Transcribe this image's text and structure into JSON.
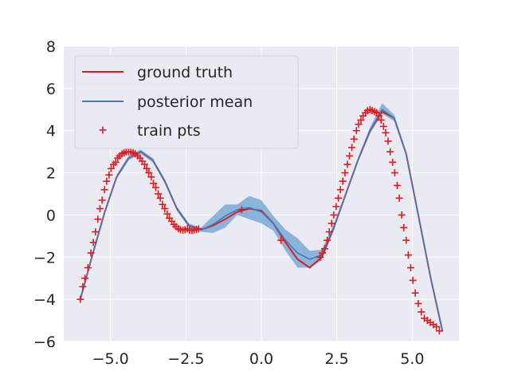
{
  "chart_data": {
    "type": "line",
    "title": "",
    "xlabel": "",
    "ylabel": "",
    "xlim": [
      -6.55,
      6.55
    ],
    "ylim": [
      -6,
      8
    ],
    "grid": true,
    "legend_position": "top-left",
    "x_ticks": [
      -5.0,
      -2.5,
      0.0,
      2.5,
      5.0
    ],
    "x_tick_labels": [
      "−5.0",
      "−2.5",
      "0.0",
      "2.5",
      "5.0"
    ],
    "y_ticks": [
      -6,
      -4,
      -2,
      0,
      2,
      4,
      6,
      8
    ],
    "y_tick_labels": [
      "−6",
      "−4",
      "−2",
      "0",
      "2",
      "4",
      "6",
      "8"
    ],
    "colors": {
      "background": "#eaeaf2",
      "grid": "#ffffff",
      "ground_truth": "#e31a1c",
      "posterior_mean": "#3a7dbf",
      "confidence_band": "#6aa1d2",
      "train_points": "#e31a1c"
    },
    "legend": [
      {
        "label": "ground truth",
        "kind": "line",
        "color": "#e31a1c"
      },
      {
        "label": "posterior mean",
        "kind": "line",
        "color": "#3a7dbf"
      },
      {
        "label": "train pts",
        "kind": "marker",
        "color": "#e31a1c"
      }
    ],
    "series": [
      {
        "name": "ground truth",
        "x": [
          -6.0,
          -5.6,
          -5.2,
          -4.8,
          -4.4,
          -4.0,
          -3.6,
          -3.2,
          -2.8,
          -2.4,
          -2.0,
          -1.6,
          -1.2,
          -0.8,
          -0.4,
          0.0,
          0.4,
          0.8,
          1.2,
          1.6,
          2.0,
          2.4,
          2.8,
          3.2,
          3.6,
          4.0,
          4.4,
          4.8,
          5.2,
          5.6,
          6.0
        ],
        "y": [
          -4.0,
          -1.9,
          0.1,
          1.8,
          2.7,
          3.0,
          2.6,
          1.6,
          0.3,
          -0.5,
          -0.7,
          -0.5,
          -0.2,
          0.15,
          0.3,
          0.2,
          -0.4,
          -1.3,
          -2.1,
          -2.5,
          -2.0,
          -0.6,
          1.0,
          2.6,
          4.0,
          4.9,
          4.6,
          2.9,
          0.0,
          -2.9,
          -5.5
        ]
      },
      {
        "name": "posterior mean",
        "x": [
          -6.0,
          -5.6,
          -5.2,
          -4.8,
          -4.4,
          -4.0,
          -3.6,
          -3.2,
          -2.8,
          -2.4,
          -2.0,
          -1.6,
          -1.2,
          -0.8,
          -0.4,
          0.0,
          0.4,
          0.8,
          1.2,
          1.6,
          2.0,
          2.4,
          2.8,
          3.2,
          3.6,
          4.0,
          4.4,
          4.8,
          5.2,
          5.6,
          6.0
        ],
        "y": [
          -4.0,
          -1.9,
          0.1,
          1.8,
          2.7,
          3.0,
          2.6,
          1.6,
          0.3,
          -0.5,
          -0.7,
          -0.45,
          -0.05,
          0.25,
          0.35,
          0.15,
          -0.4,
          -1.2,
          -1.8,
          -2.1,
          -1.9,
          -0.6,
          1.0,
          2.6,
          4.0,
          5.0,
          4.6,
          2.9,
          0.0,
          -2.9,
          -5.5
        ]
      }
    ],
    "confidence_band": {
      "x": [
        -6.0,
        -5.6,
        -5.2,
        -4.8,
        -4.4,
        -4.0,
        -3.6,
        -3.2,
        -2.8,
        -2.4,
        -2.0,
        -1.6,
        -1.2,
        -0.8,
        -0.4,
        0.0,
        0.4,
        0.8,
        1.2,
        1.6,
        2.0,
        2.4,
        2.8,
        3.2,
        3.6,
        4.0,
        4.4,
        4.8,
        5.2,
        5.6,
        6.0
      ],
      "lower": [
        -4.1,
        -2.0,
        0.0,
        1.7,
        2.6,
        2.9,
        2.5,
        1.5,
        0.2,
        -0.6,
        -0.8,
        -0.85,
        -0.6,
        0.0,
        -0.2,
        -0.4,
        -0.75,
        -1.7,
        -2.5,
        -2.5,
        -2.15,
        -0.75,
        0.9,
        2.5,
        3.85,
        4.8,
        4.45,
        2.8,
        -0.1,
        -3.0,
        -5.6
      ],
      "upper": [
        -3.9,
        -1.8,
        0.2,
        1.9,
        2.8,
        3.1,
        2.7,
        1.7,
        0.4,
        -0.4,
        -0.6,
        -0.05,
        0.5,
        0.5,
        0.9,
        0.7,
        -0.05,
        -0.7,
        -1.1,
        -1.7,
        -1.65,
        -0.45,
        1.1,
        2.7,
        4.15,
        5.3,
        4.75,
        3.0,
        0.1,
        -2.8,
        -5.4
      ]
    },
    "train_points": {
      "x": [
        -6.0,
        -5.92,
        -5.85,
        -5.75,
        -5.65,
        -5.57,
        -5.5,
        -5.42,
        -5.35,
        -5.28,
        -5.2,
        -5.13,
        -5.05,
        -4.98,
        -4.9,
        -4.83,
        -4.76,
        -4.7,
        -4.62,
        -4.55,
        -4.48,
        -4.4,
        -4.33,
        -4.25,
        -4.18,
        -4.1,
        -4.02,
        -3.95,
        -3.87,
        -3.8,
        -3.73,
        -3.65,
        -3.58,
        -3.5,
        -3.42,
        -3.35,
        -3.28,
        -3.2,
        -3.12,
        -3.05,
        -2.97,
        -2.9,
        -2.83,
        -2.75,
        -2.68,
        -2.6,
        -2.53,
        -2.45,
        -2.38,
        -2.3,
        -2.23,
        -2.15,
        -2.08,
        -0.65,
        0.65,
        1.95,
        2.02,
        2.1,
        2.18,
        2.25,
        2.33,
        2.4,
        2.48,
        2.55,
        2.62,
        2.7,
        2.77,
        2.85,
        2.92,
        3.0,
        3.07,
        3.15,
        3.22,
        3.3,
        3.37,
        3.45,
        3.52,
        3.6,
        3.67,
        3.75,
        3.82,
        3.9,
        3.97,
        4.05,
        4.12,
        4.2,
        4.27,
        4.35,
        4.42,
        4.5,
        4.57,
        4.65,
        4.72,
        4.8,
        4.87,
        4.95,
        5.02,
        5.1,
        5.2,
        5.3,
        5.4,
        5.5,
        5.6,
        5.7,
        5.8,
        5.9
      ],
      "y": [
        -4.0,
        -3.4,
        -3.0,
        -2.5,
        -1.8,
        -1.3,
        -0.8,
        -0.2,
        0.3,
        0.7,
        1.2,
        1.6,
        1.9,
        2.2,
        2.4,
        2.5,
        2.7,
        2.8,
        2.9,
        2.95,
        3.0,
        3.0,
        3.0,
        2.95,
        2.9,
        2.8,
        2.7,
        2.55,
        2.4,
        2.2,
        2.0,
        1.8,
        1.5,
        1.3,
        1.0,
        0.8,
        0.5,
        0.3,
        0.05,
        -0.15,
        -0.3,
        -0.45,
        -0.55,
        -0.65,
        -0.7,
        -0.72,
        -0.7,
        -0.65,
        -0.72,
        -0.74,
        -0.72,
        -0.69,
        -0.66,
        0.25,
        -1.2,
        -2.0,
        -1.8,
        -1.6,
        -1.2,
        -0.8,
        -0.4,
        0.0,
        0.4,
        0.8,
        1.2,
        1.6,
        2.0,
        2.4,
        2.8,
        3.2,
        3.6,
        4.0,
        4.3,
        4.5,
        4.7,
        4.85,
        4.95,
        5.0,
        4.95,
        4.9,
        4.85,
        4.7,
        4.5,
        4.2,
        3.9,
        3.5,
        3.0,
        2.5,
        2.0,
        1.4,
        0.8,
        0.0,
        -0.6,
        -1.2,
        -1.9,
        -2.5,
        -3.1,
        -3.7,
        -4.2,
        -4.6,
        -4.9,
        -5.0,
        -5.1,
        -5.2,
        -5.3,
        -5.5
      ]
    }
  }
}
